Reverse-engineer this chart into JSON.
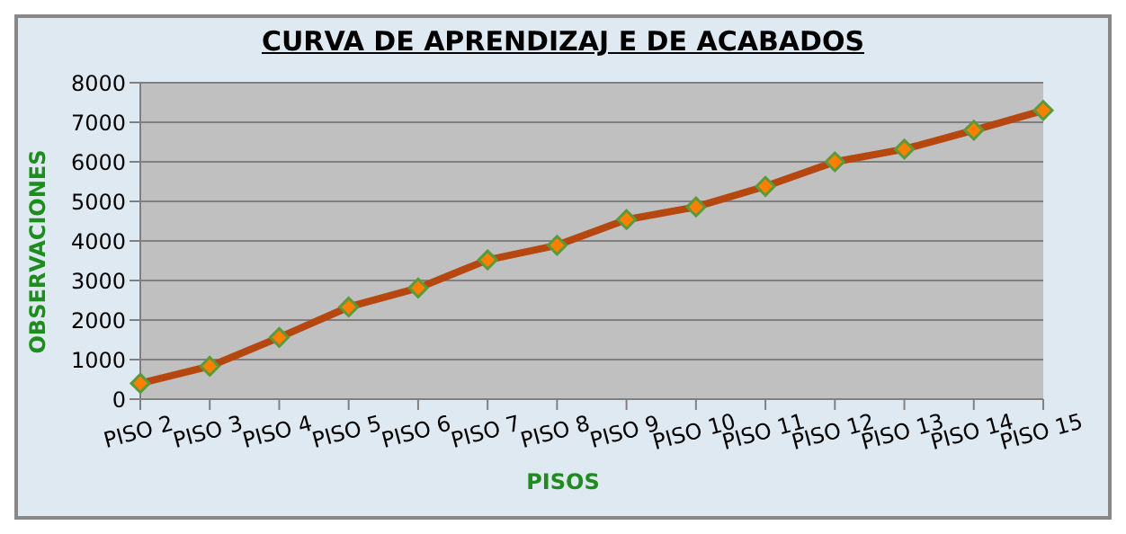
{
  "chart_data": {
    "type": "line",
    "title": "CURVA DE APRENDIZAJ E DE ACABADOS",
    "xlabel": "PISOS",
    "ylabel": "OBSERVACIONES",
    "categories": [
      "PISO 2",
      "PISO 3",
      "PISO 4",
      "PISO 5",
      "PISO 6",
      "PISO 7",
      "PISO 8",
      "PISO 9",
      "PISO 10",
      "PISO 11",
      "PISO 12",
      "PISO 13",
      "PISO 14",
      "PISO 15"
    ],
    "series": [
      {
        "color": "#b5470f",
        "values": [
          400,
          830,
          1560,
          2330,
          2810,
          3520,
          3890,
          4540,
          4860,
          5380,
          6000,
          6320,
          6800,
          7300
        ]
      }
    ],
    "ylim": [
      0,
      8000
    ],
    "yticks": [
      0,
      1000,
      2000,
      3000,
      4000,
      5000,
      6000,
      7000,
      8000
    ],
    "grid": "y",
    "marker": "diamond",
    "line_style": "solid",
    "legend": false
  }
}
